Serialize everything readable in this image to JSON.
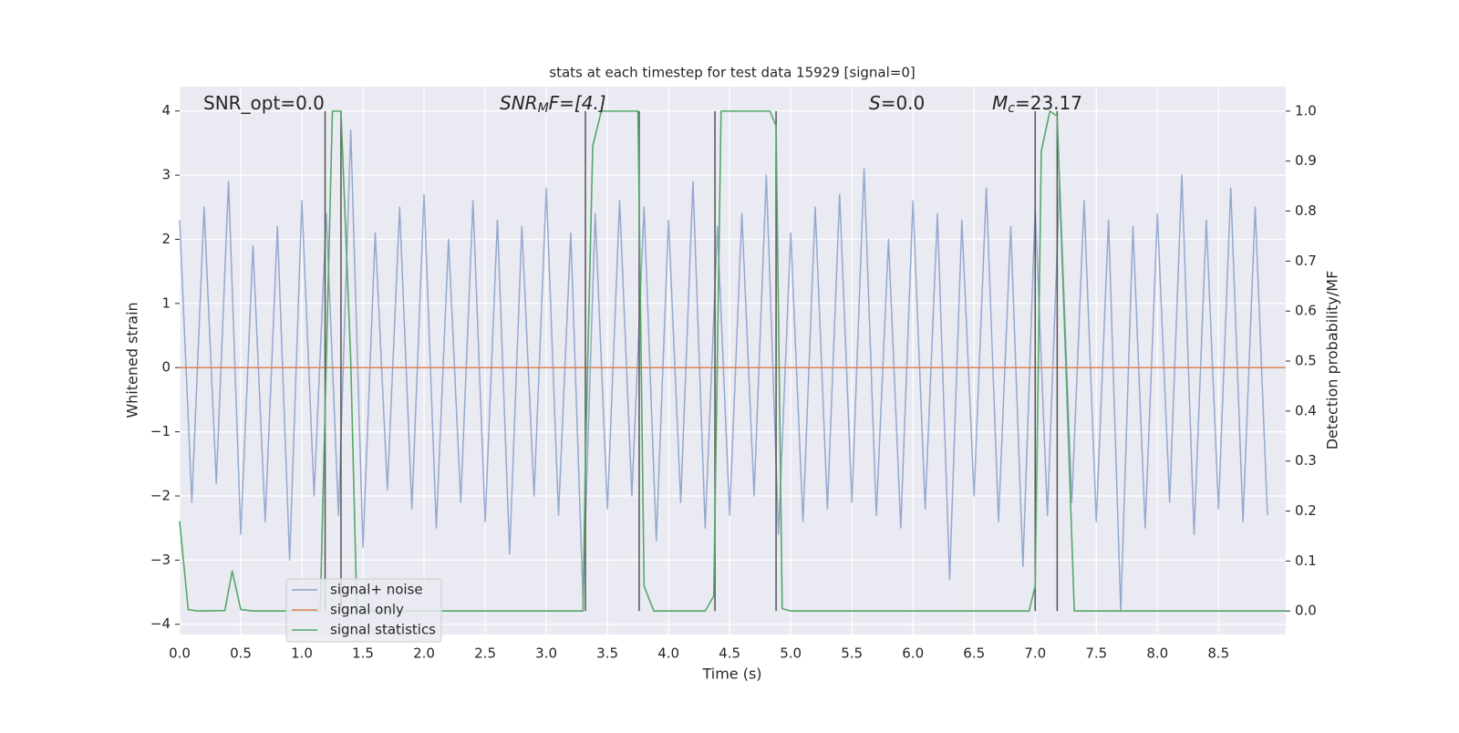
{
  "chart_data": {
    "type": "line",
    "title": "stats at each timestep for test data 15929 [signal=0]",
    "xlabel": "Time (s)",
    "ylabel": "Whitened strain",
    "y2label": "Detection probability/MF",
    "annotations": [
      {
        "base": "SNR_opt=0.0",
        "sub": "",
        "rest": ""
      },
      {
        "base": "SNR",
        "sub": "M",
        "rest": "F=[4.]"
      },
      {
        "base": "S",
        "sub": "",
        "rest": "=0.0"
      },
      {
        "base": "M",
        "sub": "c",
        "rest": "=23.17"
      }
    ],
    "xlim": [
      0,
      9.05
    ],
    "ylim": [
      -4.16,
      4.38
    ],
    "y2lim": [
      -0.047,
      1.049
    ],
    "xticks": [
      {
        "value": 0,
        "label": "0.0"
      },
      {
        "value": 0.5,
        "label": "0.5"
      },
      {
        "value": 1,
        "label": "1.0"
      },
      {
        "value": 1.5,
        "label": "1.5"
      },
      {
        "value": 2,
        "label": "2.0"
      },
      {
        "value": 2.5,
        "label": "2.5"
      },
      {
        "value": 3,
        "label": "3.0"
      },
      {
        "value": 3.5,
        "label": "3.5"
      },
      {
        "value": 4,
        "label": "4.0"
      },
      {
        "value": 4.5,
        "label": "4.5"
      },
      {
        "value": 5,
        "label": "5.0"
      },
      {
        "value": 5.5,
        "label": "5.5"
      },
      {
        "value": 6,
        "label": "6.0"
      },
      {
        "value": 6.5,
        "label": "6.5"
      },
      {
        "value": 7,
        "label": "7.0"
      },
      {
        "value": 7.5,
        "label": "7.5"
      },
      {
        "value": 8,
        "label": "8.0"
      },
      {
        "value": 8.5,
        "label": "8.5"
      }
    ],
    "yticks": [
      {
        "value": -4,
        "label": "−4"
      },
      {
        "value": -3,
        "label": "−3"
      },
      {
        "value": -2,
        "label": "−2"
      },
      {
        "value": -1,
        "label": "−1"
      },
      0,
      1,
      2,
      3,
      4
    ],
    "y2ticks": [
      {
        "value": 0,
        "label": "0.0"
      },
      {
        "value": 0.1,
        "label": "0.1"
      },
      {
        "value": 0.2,
        "label": "0.2"
      },
      {
        "value": 0.3,
        "label": "0.3"
      },
      {
        "value": 0.4,
        "label": "0.4"
      },
      {
        "value": 0.5,
        "label": "0.5"
      },
      {
        "value": 0.6,
        "label": "0.6"
      },
      {
        "value": 0.7,
        "label": "0.7"
      },
      {
        "value": 0.8,
        "label": "0.8"
      },
      {
        "value": 0.9,
        "label": "0.9"
      },
      {
        "value": 1,
        "label": "1.0"
      }
    ],
    "grid": true,
    "legend": "lower left",
    "markers": {
      "color": "#555555",
      "x": [
        1.19,
        1.32,
        3.32,
        3.76,
        4.38,
        4.88,
        7.0,
        7.18
      ]
    },
    "series": [
      {
        "name": "signal+ noise",
        "color": "#4c72b0",
        "x": [
          0,
          0.1,
          0.2,
          0.3,
          0.4,
          0.5,
          0.6,
          0.7,
          0.8,
          0.9,
          1,
          1.1,
          1.2,
          1.3,
          1.4,
          1.5,
          1.6,
          1.7,
          1.8,
          1.9,
          2,
          2.1,
          2.2,
          2.3,
          2.4,
          2.5,
          2.6,
          2.7,
          2.8,
          2.9,
          3,
          3.1,
          3.2,
          3.3,
          3.4,
          3.5,
          3.6,
          3.7,
          3.8,
          3.9,
          4,
          4.1,
          4.2,
          4.3,
          4.4,
          4.5,
          4.6,
          4.7,
          4.8,
          4.9,
          5,
          5.1,
          5.2,
          5.3,
          5.4,
          5.5,
          5.6,
          5.7,
          5.8,
          5.9,
          6,
          6.1,
          6.2,
          6.3,
          6.4,
          6.5,
          6.6,
          6.7,
          6.8,
          6.9,
          7,
          7.1,
          7.2,
          7.3,
          7.4,
          7.5,
          7.6,
          7.7,
          7.8,
          7.9,
          8,
          8.1,
          8.2,
          8.3,
          8.4,
          8.5,
          8.6,
          8.7,
          8.8,
          8.9
        ],
        "values": [
          2.3,
          -2.1,
          2.5,
          -1.8,
          2.9,
          -2.6,
          1.9,
          -2.4,
          2.2,
          -3.0,
          2.6,
          -2.0,
          2.4,
          -2.3,
          3.7,
          -2.8,
          2.1,
          -1.9,
          2.5,
          -2.2,
          2.7,
          -2.5,
          2.0,
          -2.1,
          2.6,
          -2.4,
          2.3,
          -2.9,
          2.2,
          -2.0,
          2.8,
          -2.3,
          2.1,
          -3.6,
          2.4,
          -2.2,
          2.6,
          -2.0,
          2.5,
          -2.7,
          2.3,
          -2.1,
          2.9,
          -2.5,
          2.2,
          -2.3,
          2.4,
          -2.0,
          3.0,
          -2.6,
          2.1,
          -2.4,
          2.5,
          -2.2,
          2.7,
          -2.1,
          3.1,
          -2.3,
          2.0,
          -2.5,
          2.6,
          -2.2,
          2.4,
          -3.3,
          2.3,
          -2.0,
          2.8,
          -2.4,
          2.2,
          -3.1,
          2.5,
          -2.3,
          2.9,
          -2.1,
          2.6,
          -2.4,
          2.3,
          -3.8,
          2.2,
          -2.5,
          2.4,
          -2.1,
          3.0,
          -2.6,
          2.3,
          -2.2,
          2.8,
          -2.4,
          2.5,
          -2.3
        ]
      },
      {
        "name": "signal only",
        "color": "#dd8452",
        "x": [
          0,
          9.05
        ],
        "values": [
          0,
          0
        ]
      },
      {
        "name": "signal statistics",
        "color": "#55a868",
        "axis": "y2",
        "x": [
          0,
          0.07,
          0.15,
          0.37,
          0.43,
          0.5,
          0.6,
          1.15,
          1.2,
          1.25,
          1.32,
          1.4,
          1.45,
          3.3,
          3.32,
          3.38,
          3.45,
          3.75,
          3.8,
          3.88,
          4.3,
          4.37,
          4.43,
          4.83,
          4.88,
          4.93,
          5.0,
          6.95,
          7.0,
          7.05,
          7.12,
          7.18,
          7.25,
          7.32,
          9.05
        ],
        "values": [
          0.18,
          0.003,
          0,
          0.001,
          0.08,
          0.003,
          0,
          0,
          0.5,
          1,
          1,
          0.5,
          0,
          0,
          0.3,
          0.93,
          1,
          1,
          0.05,
          0,
          0,
          0.03,
          1,
          1,
          0.97,
          0.005,
          0,
          0,
          0.05,
          0.92,
          1,
          0.99,
          0.5,
          0,
          0
        ]
      }
    ]
  }
}
